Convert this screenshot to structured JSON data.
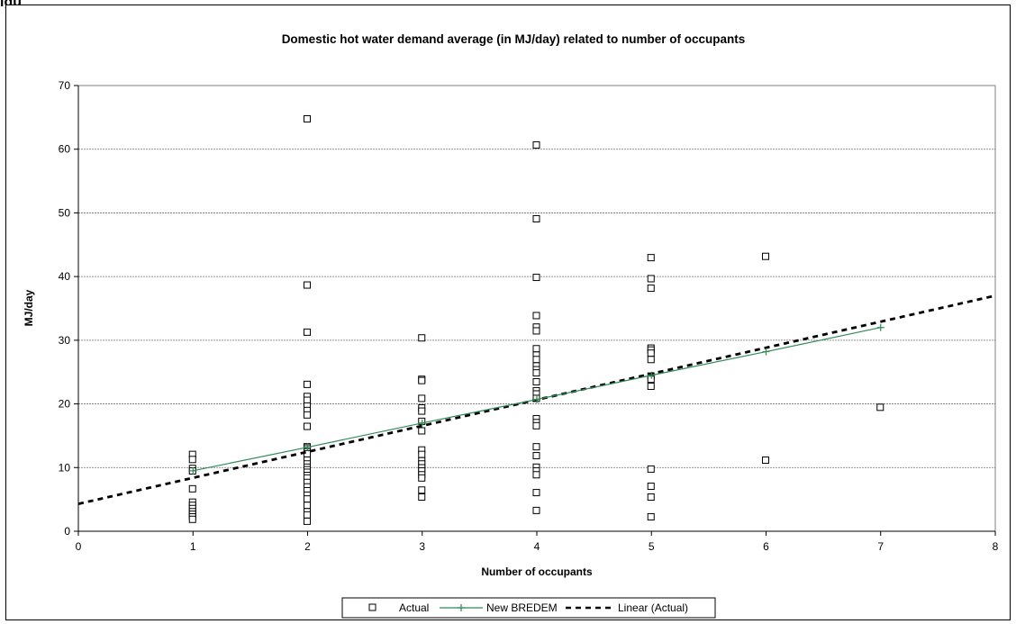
{
  "figure_label": "igu",
  "chart_data": {
    "type": "scatter",
    "title": "Domestic hot water demand average (in MJ/day) related to number of occupants",
    "xlabel": "Number of occupants",
    "ylabel": "MJ/day",
    "xlim": [
      0,
      8
    ],
    "ylim": [
      0,
      70
    ],
    "xticks": [
      "0",
      "1",
      "2",
      "3",
      "4",
      "5",
      "6",
      "7",
      "8"
    ],
    "yticks": [
      "0",
      "10",
      "20",
      "30",
      "40",
      "50",
      "60",
      "70"
    ],
    "grid": "horizontal",
    "legend_position": "bottom",
    "series": [
      {
        "name": "Actual",
        "kind": "markers",
        "marker": "square",
        "color": "#000000",
        "points": [
          [
            1,
            12.0
          ],
          [
            1,
            11.2
          ],
          [
            1,
            9.8
          ],
          [
            1,
            9.4
          ],
          [
            1,
            6.6
          ],
          [
            1,
            4.5
          ],
          [
            1,
            4.0
          ],
          [
            1,
            3.5
          ],
          [
            1,
            3.0
          ],
          [
            1,
            2.6
          ],
          [
            1,
            2.2
          ],
          [
            1,
            1.8
          ],
          [
            2,
            64.7
          ],
          [
            2,
            38.6
          ],
          [
            2,
            31.2
          ],
          [
            2,
            23.0
          ],
          [
            2,
            21.1
          ],
          [
            2,
            20.5
          ],
          [
            2,
            19.6
          ],
          [
            2,
            18.9
          ],
          [
            2,
            18.2
          ],
          [
            2,
            16.4
          ],
          [
            2,
            13.2
          ],
          [
            2,
            13.0
          ],
          [
            2,
            12.7
          ],
          [
            2,
            12.4
          ],
          [
            2,
            12.1
          ],
          [
            2,
            11.1
          ],
          [
            2,
            10.5
          ],
          [
            2,
            10.0
          ],
          [
            2,
            9.6
          ],
          [
            2,
            9.2
          ],
          [
            2,
            8.7
          ],
          [
            2,
            8.3
          ],
          [
            2,
            7.6
          ],
          [
            2,
            6.9
          ],
          [
            2,
            6.3
          ],
          [
            2,
            5.6
          ],
          [
            2,
            5.0
          ],
          [
            2,
            4.0
          ],
          [
            2,
            3.0
          ],
          [
            2,
            2.5
          ],
          [
            2,
            1.5
          ],
          [
            3,
            30.3
          ],
          [
            3,
            23.8
          ],
          [
            3,
            23.6
          ],
          [
            3,
            20.8
          ],
          [
            3,
            19.3
          ],
          [
            3,
            18.8
          ],
          [
            3,
            17.2
          ],
          [
            3,
            15.7
          ],
          [
            3,
            12.7
          ],
          [
            3,
            12.0
          ],
          [
            3,
            11.0
          ],
          [
            3,
            10.5
          ],
          [
            3,
            9.9
          ],
          [
            3,
            9.4
          ],
          [
            3,
            8.8
          ],
          [
            3,
            8.3
          ],
          [
            3,
            6.4
          ],
          [
            3,
            5.3
          ],
          [
            4,
            60.6
          ],
          [
            4,
            49.0
          ],
          [
            4,
            39.8
          ],
          [
            4,
            33.8
          ],
          [
            4,
            32.0
          ],
          [
            4,
            31.4
          ],
          [
            4,
            28.6
          ],
          [
            4,
            27.6
          ],
          [
            4,
            26.9
          ],
          [
            4,
            25.9
          ],
          [
            4,
            25.3
          ],
          [
            4,
            24.8
          ],
          [
            4,
            23.4
          ],
          [
            4,
            22.0
          ],
          [
            4,
            21.5
          ],
          [
            4,
            20.8
          ],
          [
            4,
            17.6
          ],
          [
            4,
            17.0
          ],
          [
            4,
            16.5
          ],
          [
            4,
            13.2
          ],
          [
            4,
            11.8
          ],
          [
            4,
            10.0
          ],
          [
            4,
            9.4
          ],
          [
            4,
            8.8
          ],
          [
            4,
            6.0
          ],
          [
            4,
            3.2
          ],
          [
            5,
            42.9
          ],
          [
            5,
            39.6
          ],
          [
            5,
            38.1
          ],
          [
            5,
            28.7
          ],
          [
            5,
            28.4
          ],
          [
            5,
            27.9
          ],
          [
            5,
            26.9
          ],
          [
            5,
            24.3
          ],
          [
            5,
            23.8
          ],
          [
            5,
            22.7
          ],
          [
            5,
            9.7
          ],
          [
            5,
            7.0
          ],
          [
            5,
            5.3
          ],
          [
            5,
            2.2
          ],
          [
            6,
            43.1
          ],
          [
            6,
            11.1
          ],
          [
            7,
            19.4
          ]
        ]
      },
      {
        "name": "New BREDEM",
        "kind": "line-markers",
        "marker": "plus",
        "color": "#2e8b57",
        "points": [
          [
            1,
            9.5
          ],
          [
            2,
            13.2
          ],
          [
            3,
            17.0
          ],
          [
            4,
            20.7
          ],
          [
            5,
            24.5
          ],
          [
            6,
            28.2
          ],
          [
            7,
            32.0
          ]
        ]
      },
      {
        "name": "Linear (Actual)",
        "kind": "dashed-line",
        "color": "#000000",
        "points": [
          [
            0,
            4.3
          ],
          [
            8,
            37.0
          ]
        ]
      }
    ]
  }
}
